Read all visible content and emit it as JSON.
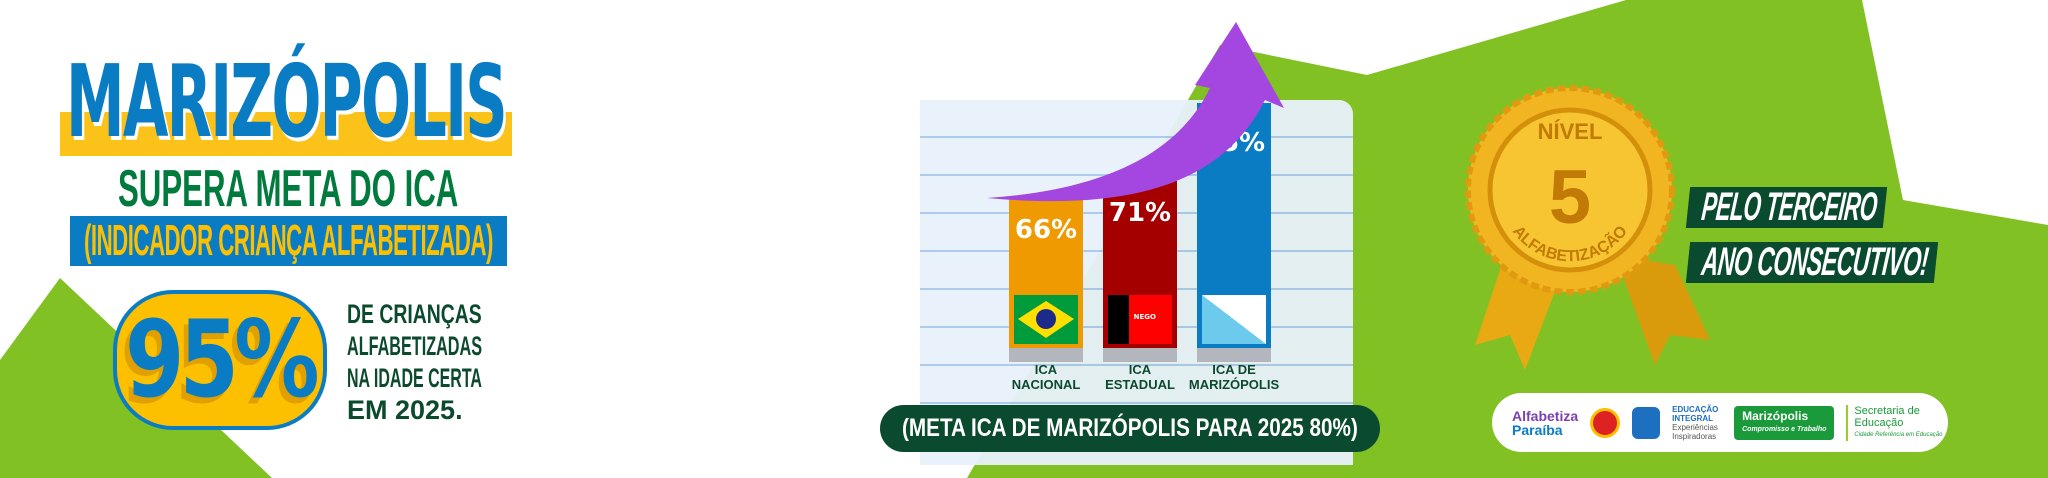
{
  "headline": {
    "city": "MARIZÓPOLIS",
    "subtitle": "SUPERA META DO ICA",
    "indicator": "(INDICADOR CRIANÇA ALFABETIZADA)"
  },
  "highlight": {
    "value": "95%",
    "description": [
      "DE CRIANÇAS",
      "ALFABETIZADAS",
      "NA IDADE CERTA",
      "EM 2025."
    ]
  },
  "chart_data": {
    "type": "bar",
    "categories": [
      "ICA NACIONAL",
      "ICA ESTADUAL",
      "ICA DE MARIZÓPOLIS"
    ],
    "values": [
      66,
      71,
      95
    ],
    "value_labels": [
      "66%",
      "71%",
      "95%"
    ],
    "colors": [
      "#ee9a00",
      "#a50000",
      "#0a7cc4"
    ],
    "label_lines": [
      [
        "ICA",
        "NACIONAL"
      ],
      [
        "ICA",
        "ESTADUAL"
      ],
      [
        "ICA DE",
        "MARIZÓPOLIS"
      ]
    ],
    "flags": [
      "brasil-flag",
      "paraiba-flag",
      "marizopolis-flag"
    ],
    "flag_text": "NEGO"
  },
  "goal": "(META ICA  DE MARIZÓPOLIS PARA 2025 80%)",
  "medal": {
    "top": "NÍVEL",
    "number": "5",
    "bottom": "ALFABETIZAÇÃO"
  },
  "tagline": [
    "PELO TERCEIRO",
    "ANO CONSECUTIVO!"
  ],
  "logos": {
    "alfabetiza_1": "Alfabetiza",
    "alfabetiza_2": "Paraíba",
    "educacao_1": "EDUCAÇÃO",
    "educacao_2": "INTEGRAL",
    "educacao_3": "Experiências Inspiradoras",
    "prefeitura": "Marizópolis",
    "prefeitura_sub": "Compromisso e Trabalho",
    "secretaria_1": "Secretaria de",
    "secretaria_2": "Educação",
    "secretaria_3": "Cidade Referência em Educação"
  },
  "colors": {
    "green": "#82c124",
    "dark_green": "#0a4a2e",
    "blue": "#0a7cc4",
    "yellow": "#fcc000",
    "purple": "#a347e0"
  }
}
